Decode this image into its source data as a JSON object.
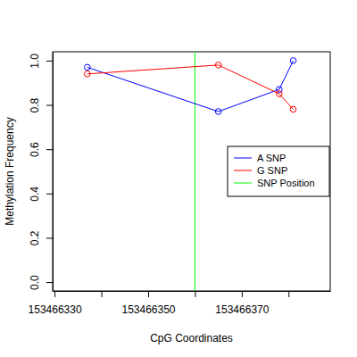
{
  "chart_data": {
    "type": "line",
    "x_label": "CpG Coordinates",
    "y_label": "Methylation Frequency",
    "x": [
      153466337,
      153466365,
      153466378,
      153466381
    ],
    "series": [
      {
        "name": "A SNP",
        "color": "#0000ff",
        "marker": "circle",
        "line_style": "solid",
        "values": [
          0.97,
          0.77,
          0.87,
          1.0
        ]
      },
      {
        "name": "G SNP",
        "color": "#ff0000",
        "marker": "circle",
        "line_style": "solid",
        "values": [
          0.94,
          0.98,
          0.85,
          0.78
        ]
      }
    ],
    "vlines": [
      {
        "name": "SNP Position",
        "color": "#00ff00",
        "x": 153466360
      }
    ],
    "xlim": [
      153466329.6,
      153466388.9
    ],
    "xticks": [
      153466330,
      {
        "value": 153466340,
        "label": null
      },
      153466350,
      {
        "value": 153466360,
        "label": null
      },
      153466370,
      {
        "value": 153466380,
        "label": null
      }
    ],
    "ylim": [
      -0.04,
      1.04
    ],
    "yticks": [
      {
        "value": 0,
        "label": "0.0"
      },
      0.2,
      0.4,
      0.6,
      0.8,
      {
        "value": 1,
        "label": "1.0"
      }
    ],
    "grid": false,
    "legend": "right"
  }
}
